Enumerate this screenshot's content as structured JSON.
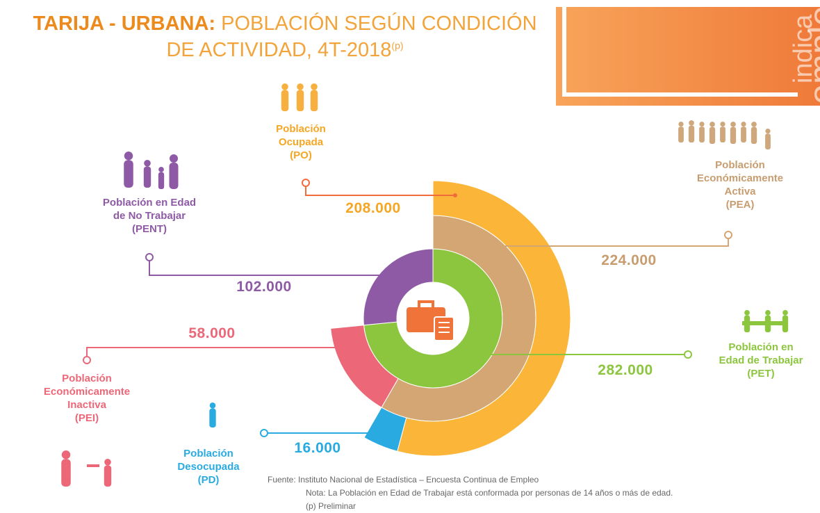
{
  "chart_data": {
    "type": "sunburst",
    "title_bold": "TARIJA - URBANA:",
    "title": [
      "POBLACIÓN SEGÚN CONDICIÓN",
      "DE ACTIVIDAD, 4T-2018"
    ],
    "title_note": "(p)",
    "side_text": [
      "indica",
      "emple"
    ],
    "segments": [
      {
        "name": [
          "Población en",
          "Edad de Trabajar",
          "(PET)"
        ],
        "value": 282000,
        "value_label": "282.000",
        "color": "#8cc63e",
        "children": [
          {
            "name": [
              "Población",
              "Económicamente",
              "Activa",
              "(PEA)"
            ],
            "value": 224000,
            "value_label": "224.000",
            "color": "#d3a673",
            "children": [
              {
                "name": [
                  "Población",
                  "Ocupada",
                  "(PO)"
                ],
                "value": 208000,
                "value_label": "208.000",
                "color": "#fbb63a"
              },
              {
                "name": [
                  "Población",
                  "Desocupada",
                  "(PD)"
                ],
                "value": 16000,
                "value_label": "16.000",
                "color": "#29abe2"
              }
            ]
          },
          {
            "name": [
              "Población",
              "Económicamente",
              "Inactiva",
              "(PEI)"
            ],
            "value": 58000,
            "value_label": "58.000",
            "color": "#ec6878"
          }
        ]
      },
      {
        "name": [
          "Población en Edad",
          "de No Trabajar",
          "(PENT)"
        ],
        "value": 102000,
        "value_label": "102.000",
        "color": "#8e5aa5"
      }
    ],
    "notes": [
      "Fuente: Instituto Nacional de Estadística – Encuesta Continua de Empleo",
      "Nota: La Población en Edad de Trabajar está conformada por personas de 14 años o más de edad.",
      "(p) Preliminar"
    ]
  }
}
